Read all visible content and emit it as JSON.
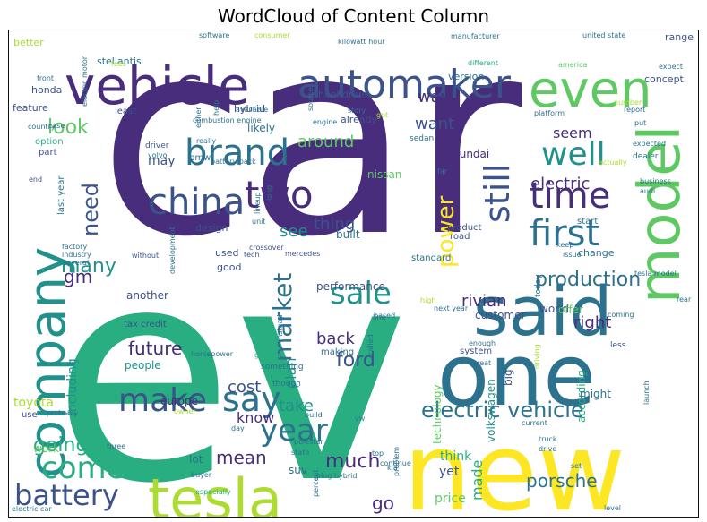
{
  "title": "WordCloud of Content Column",
  "palette": [
    "#440154",
    "#472d7b",
    "#3b528b",
    "#2c728e",
    "#21918c",
    "#28ae80",
    "#5ec962",
    "#addc30",
    "#fde725"
  ],
  "words": [
    {
      "text": "car",
      "c": 1,
      "s": 300
    },
    {
      "text": "ev",
      "c": 5,
      "s": 330
    },
    {
      "text": "new",
      "c": 8,
      "s": 120
    },
    {
      "text": "one",
      "c": 3,
      "s": 95
    },
    {
      "text": "vehicle",
      "c": 1,
      "s": 58
    },
    {
      "text": "company",
      "c": 4,
      "s": 56
    },
    {
      "text": "tesla",
      "c": 7,
      "s": 62
    },
    {
      "text": "said",
      "c": 3,
      "s": 76
    },
    {
      "text": "model",
      "c": 6,
      "s": 64
    },
    {
      "text": "automaker",
      "c": 2,
      "s": 44
    },
    {
      "text": "even",
      "c": 6,
      "s": 56
    },
    {
      "text": "brand",
      "c": 3,
      "s": 40
    },
    {
      "text": "two",
      "c": 1,
      "s": 42
    },
    {
      "text": "china",
      "c": 2,
      "s": 40
    },
    {
      "text": "time",
      "c": 1,
      "s": 40
    },
    {
      "text": "well",
      "c": 4,
      "s": 36
    },
    {
      "text": "first",
      "c": 3,
      "s": 40
    },
    {
      "text": "still",
      "c": 2,
      "s": 38
    },
    {
      "text": "make",
      "c": 2,
      "s": 36
    },
    {
      "text": "say",
      "c": 3,
      "s": 38
    },
    {
      "text": "come",
      "c": 5,
      "s": 34
    },
    {
      "text": "battery",
      "c": 2,
      "s": 32
    },
    {
      "text": "year",
      "c": 3,
      "s": 34
    },
    {
      "text": "sale",
      "c": 4,
      "s": 34
    },
    {
      "text": "market",
      "c": 3,
      "s": 28
    },
    {
      "text": "power",
      "c": 8,
      "s": 26
    },
    {
      "text": "production",
      "c": 3,
      "s": 22
    },
    {
      "text": "electric vehicle",
      "c": 3,
      "s": 24
    },
    {
      "text": "need",
      "c": 2,
      "s": 24
    },
    {
      "text": "look",
      "c": 6,
      "s": 22
    },
    {
      "text": "many",
      "c": 4,
      "s": 22
    },
    {
      "text": "going",
      "c": 5,
      "s": 22
    },
    {
      "text": "porsche",
      "c": 3,
      "s": 20
    },
    {
      "text": "ford",
      "c": 2,
      "s": 22
    },
    {
      "text": "much",
      "c": 1,
      "s": 22
    },
    {
      "text": "mean",
      "c": 1,
      "s": 20
    },
    {
      "text": "future",
      "c": 1,
      "s": 20
    },
    {
      "text": "rivian",
      "c": 1,
      "s": 18
    },
    {
      "text": "back",
      "c": 1,
      "s": 18
    },
    {
      "text": "right",
      "c": 1,
      "s": 18
    },
    {
      "text": "see",
      "c": 4,
      "s": 18
    },
    {
      "text": "thing",
      "c": 2,
      "s": 18
    },
    {
      "text": "around",
      "c": 6,
      "s": 18
    },
    {
      "text": "way",
      "c": 1,
      "s": 18
    },
    {
      "text": "want",
      "c": 2,
      "s": 18
    },
    {
      "text": "seem",
      "c": 1,
      "s": 16
    },
    {
      "text": "electric",
      "c": 1,
      "s": 18
    },
    {
      "text": "cost",
      "c": 2,
      "s": 18
    },
    {
      "text": "take",
      "c": 4,
      "s": 18
    },
    {
      "text": "know",
      "c": 1,
      "s": 16
    },
    {
      "text": "plan",
      "c": 4,
      "s": 16
    },
    {
      "text": "gm",
      "c": 1,
      "s": 20
    },
    {
      "text": "made",
      "c": 5,
      "s": 16
    },
    {
      "text": "go",
      "c": 1,
      "s": 20
    },
    {
      "text": "price",
      "c": 6,
      "s": 14
    },
    {
      "text": "toyota",
      "c": 7,
      "s": 14
    },
    {
      "text": "including",
      "c": 4,
      "s": 14
    },
    {
      "text": "may",
      "c": 2,
      "s": 14
    },
    {
      "text": "yet",
      "c": 2,
      "s": 14
    },
    {
      "text": "think",
      "c": 5,
      "s": 14
    },
    {
      "text": "technology",
      "c": 6,
      "s": 12
    },
    {
      "text": "volkswagen",
      "c": 4,
      "s": 12
    },
    {
      "text": "according",
      "c": 5,
      "s": 12
    },
    {
      "text": "big",
      "c": 2,
      "s": 12
    },
    {
      "text": "might",
      "c": 3,
      "s": 12
    },
    {
      "text": "work",
      "c": 6,
      "s": 12
    },
    {
      "text": "lot",
      "c": 3,
      "s": 12
    },
    {
      "text": "suv",
      "c": 3,
      "s": 12
    },
    {
      "text": "europe",
      "c": 1,
      "s": 12
    },
    {
      "text": "people",
      "c": 4,
      "s": 12
    },
    {
      "text": "another",
      "c": 2,
      "s": 12
    },
    {
      "text": "performance",
      "c": 2,
      "s": 12
    },
    {
      "text": "customer",
      "c": 2,
      "s": 12
    },
    {
      "text": "world",
      "c": 2,
      "s": 12
    },
    {
      "text": "offer",
      "c": 6,
      "s": 12
    },
    {
      "text": "change",
      "c": 3,
      "s": 11
    },
    {
      "text": "built",
      "c": 3,
      "s": 12
    },
    {
      "text": "design",
      "c": 2,
      "s": 11
    },
    {
      "text": "used",
      "c": 2,
      "s": 11
    },
    {
      "text": "good",
      "c": 2,
      "s": 11
    },
    {
      "text": "nissan",
      "c": 6,
      "s": 12
    },
    {
      "text": "hyundai",
      "c": 1,
      "s": 12
    },
    {
      "text": "already",
      "c": 2,
      "s": 11
    },
    {
      "text": "likely",
      "c": 3,
      "s": 12
    },
    {
      "text": "hybrid",
      "c": 2,
      "s": 11
    },
    {
      "text": "wheel drive",
      "c": 2,
      "s": 11
    },
    {
      "text": "honda",
      "c": 2,
      "s": 11
    },
    {
      "text": "feature",
      "c": 2,
      "s": 11
    },
    {
      "text": "better",
      "c": 7,
      "s": 11
    },
    {
      "text": "stellantis",
      "c": 3,
      "s": 11
    },
    {
      "text": "range",
      "c": 2,
      "s": 11
    },
    {
      "text": "concept",
      "c": 2,
      "s": 11
    },
    {
      "text": "version",
      "c": 3,
      "s": 11
    },
    {
      "text": "least",
      "c": 2,
      "s": 10
    },
    {
      "text": "option",
      "c": 5,
      "s": 10
    },
    {
      "text": "part",
      "c": 2,
      "s": 10
    },
    {
      "text": "bmw",
      "c": 3,
      "s": 10
    },
    {
      "text": "last year",
      "c": 3,
      "s": 10
    },
    {
      "text": "tax credit",
      "c": 2,
      "s": 10
    },
    {
      "text": "use",
      "c": 2,
      "s": 10
    },
    {
      "text": "start",
      "c": 3,
      "s": 10
    },
    {
      "text": "product",
      "c": 2,
      "s": 10
    },
    {
      "text": "road",
      "c": 2,
      "s": 10
    },
    {
      "text": "standard",
      "c": 3,
      "s": 10
    },
    {
      "text": "system",
      "c": 2,
      "s": 10
    },
    {
      "text": "making",
      "c": 3,
      "s": 10
    },
    {
      "text": "dealer",
      "c": 3,
      "s": 9
    },
    {
      "text": "sedan",
      "c": 3,
      "s": 9
    },
    {
      "text": "today",
      "c": 3,
      "s": 9
    },
    {
      "text": "less",
      "c": 2,
      "s": 9
    },
    {
      "text": "something",
      "c": 3,
      "s": 9
    },
    {
      "text": "though",
      "c": 3,
      "s": 9
    },
    {
      "text": "driver",
      "c": 2,
      "s": 9
    },
    {
      "text": "end",
      "c": 2,
      "s": 8
    },
    {
      "text": "factory",
      "c": 3,
      "s": 8
    },
    {
      "text": "industry",
      "c": 3,
      "s": 8
    },
    {
      "text": "several",
      "c": 3,
      "s": 8
    },
    {
      "text": "mercedes",
      "c": 2,
      "s": 8
    },
    {
      "text": "crossover",
      "c": 2,
      "s": 8
    },
    {
      "text": "tech",
      "c": 2,
      "s": 8
    },
    {
      "text": "without",
      "c": 2,
      "s": 8
    },
    {
      "text": "unit",
      "c": 3,
      "s": 8
    },
    {
      "text": "lineup",
      "c": 3,
      "s": 8
    },
    {
      "text": "volvo",
      "c": 3,
      "s": 8
    },
    {
      "text": "battery pack",
      "c": 3,
      "s": 8
    },
    {
      "text": "software",
      "c": 3,
      "s": 8
    },
    {
      "text": "consumer",
      "c": 7,
      "s": 8
    },
    {
      "text": "kilowatt hour",
      "c": 3,
      "s": 8
    },
    {
      "text": "manufacturer",
      "c": 3,
      "s": 8
    },
    {
      "text": "united state",
      "c": 3,
      "s": 8
    },
    {
      "text": "america",
      "c": 6,
      "s": 8
    },
    {
      "text": "front",
      "c": 3,
      "s": 8
    },
    {
      "text": "electric motor",
      "c": 3,
      "s": 8
    },
    {
      "text": "combustion engine",
      "c": 3,
      "s": 8
    },
    {
      "text": "available",
      "c": 3,
      "s": 8
    },
    {
      "text": "story",
      "c": 3,
      "s": 8
    },
    {
      "text": "platform",
      "c": 3,
      "s": 8
    },
    {
      "text": "expected",
      "c": 3,
      "s": 8
    },
    {
      "text": "business",
      "c": 3,
      "s": 8
    },
    {
      "text": "audi",
      "c": 3,
      "s": 8
    },
    {
      "text": "keep",
      "c": 3,
      "s": 8
    },
    {
      "text": "issue",
      "c": 3,
      "s": 8
    },
    {
      "text": "tesla model",
      "c": 3,
      "s": 8
    },
    {
      "text": "rear",
      "c": 3,
      "s": 8
    },
    {
      "text": "next year",
      "c": 3,
      "s": 8
    },
    {
      "text": "coming",
      "c": 3,
      "s": 8
    },
    {
      "text": "enough",
      "c": 3,
      "s": 8
    },
    {
      "text": "great",
      "c": 3,
      "s": 8
    },
    {
      "text": "based",
      "c": 3,
      "s": 8
    },
    {
      "text": "called",
      "c": 3,
      "s": 8
    },
    {
      "text": "horsepower",
      "c": 3,
      "s": 8
    },
    {
      "text": "getting",
      "c": 5,
      "s": 8
    },
    {
      "text": "instead",
      "c": 3,
      "s": 8
    },
    {
      "text": "line",
      "c": 3,
      "s": 8
    },
    {
      "text": "polestar",
      "c": 3,
      "s": 8
    },
    {
      "text": "state",
      "c": 3,
      "s": 8
    },
    {
      "text": "problem",
      "c": 3,
      "s": 8
    },
    {
      "text": "plug hybrid",
      "c": 3,
      "s": 8
    },
    {
      "text": "percent",
      "c": 3,
      "s": 8
    },
    {
      "text": "buyer",
      "c": 3,
      "s": 8
    },
    {
      "text": "especially",
      "c": 5,
      "s": 8
    },
    {
      "text": "electric car",
      "c": 3,
      "s": 8
    },
    {
      "text": "three",
      "c": 3,
      "s": 8
    },
    {
      "text": "probably",
      "c": 3,
      "s": 8
    },
    {
      "text": "owner",
      "c": 7,
      "s": 8
    },
    {
      "text": "day",
      "c": 3,
      "s": 8
    },
    {
      "text": "build",
      "c": 3,
      "s": 8
    },
    {
      "text": "vw",
      "c": 3,
      "s": 8
    },
    {
      "text": "kia",
      "c": 3,
      "s": 8
    },
    {
      "text": "top",
      "c": 3,
      "s": 8
    },
    {
      "text": "continue",
      "c": 3,
      "s": 8
    },
    {
      "text": "truck",
      "c": 3,
      "s": 8
    },
    {
      "text": "drive",
      "c": 3,
      "s": 8
    },
    {
      "text": "current",
      "c": 3,
      "s": 8
    },
    {
      "text": "set",
      "c": 3,
      "s": 8
    },
    {
      "text": "level",
      "c": 3,
      "s": 8
    },
    {
      "text": "launch",
      "c": 3,
      "s": 8
    },
    {
      "text": "expect",
      "c": 3,
      "s": 8
    },
    {
      "text": "put",
      "c": 3,
      "s": 8
    },
    {
      "text": "report",
      "c": 3,
      "s": 8
    },
    {
      "text": "number",
      "c": 7,
      "s": 8
    },
    {
      "text": "different",
      "c": 5,
      "s": 8
    },
    {
      "text": "far",
      "c": 3,
      "s": 8
    },
    {
      "text": "actually",
      "c": 7,
      "s": 8
    },
    {
      "text": "really",
      "c": 3,
      "s": 8
    },
    {
      "text": "help",
      "c": 3,
      "s": 8
    },
    {
      "text": "either",
      "c": 3,
      "s": 8
    },
    {
      "text": "case",
      "c": 3,
      "s": 8
    },
    {
      "text": "country",
      "c": 3,
      "s": 8
    },
    {
      "text": "development",
      "c": 3,
      "s": 8
    },
    {
      "text": "long",
      "c": 3,
      "s": 8
    },
    {
      "text": "fees",
      "c": 7,
      "s": 8
    },
    {
      "text": "engine",
      "c": 3,
      "s": 8
    },
    {
      "text": "source",
      "c": 3,
      "s": 8
    },
    {
      "text": "driving",
      "c": 7,
      "s": 8
    },
    {
      "text": "got",
      "c": 7,
      "s": 8
    },
    {
      "text": "high",
      "c": 7,
      "s": 8
    }
  ]
}
